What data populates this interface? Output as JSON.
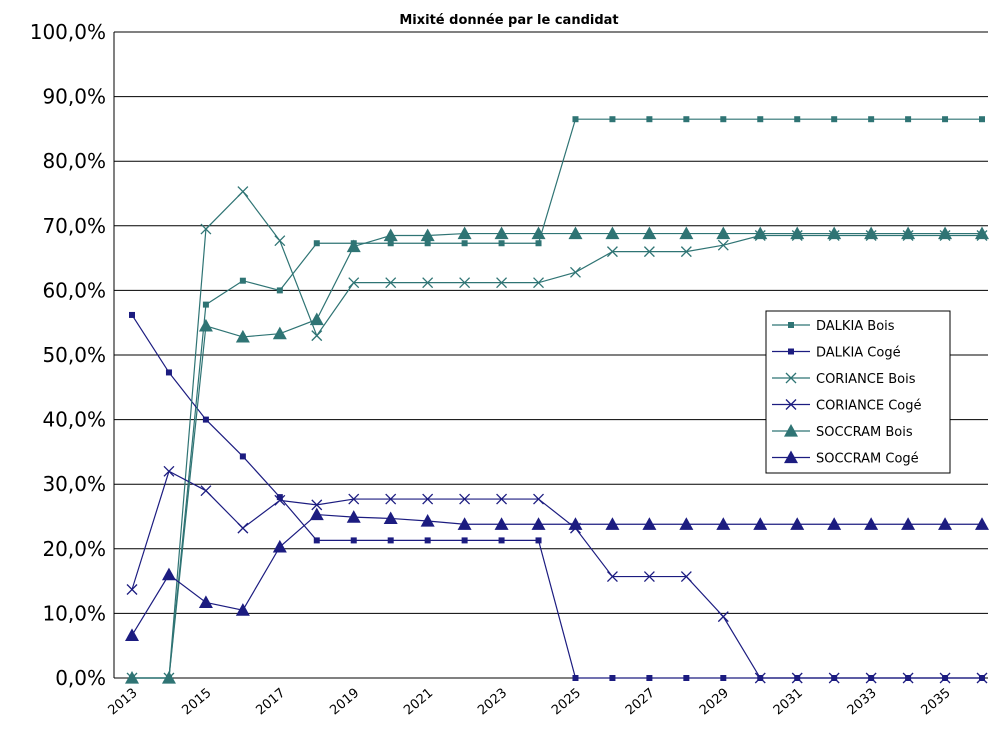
{
  "chart_data": {
    "type": "line",
    "title": "Mixité donnée par le candidat",
    "xlabel": "",
    "ylabel": "",
    "x": [
      2013,
      2014,
      2015,
      2016,
      2017,
      2018,
      2019,
      2020,
      2021,
      2022,
      2023,
      2024,
      2025,
      2026,
      2027,
      2028,
      2029,
      2030,
      2031,
      2032,
      2033,
      2034,
      2035,
      2036
    ],
    "x_tick_labels": [
      "2013",
      "2015",
      "2017",
      "2019",
      "2021",
      "2023",
      "2025",
      "2027",
      "2029",
      "2031",
      "2033",
      "2035"
    ],
    "ylim": [
      0,
      100
    ],
    "y_tick_labels": [
      "0,0%",
      "10,0%",
      "20,0%",
      "30,0%",
      "40,0%",
      "50,0%",
      "60,0%",
      "70,0%",
      "80,0%",
      "90,0%",
      "100,0%"
    ],
    "grid": "horizontal",
    "legend_position": "right",
    "series": [
      {
        "name": "DALKIA Bois",
        "color": "#2f7474",
        "marker": "square",
        "size": "small",
        "values": [
          0,
          0,
          57.8,
          61.5,
          60,
          67.3,
          67.3,
          67.3,
          67.3,
          67.3,
          67.3,
          67.3,
          86.5,
          86.5,
          86.5,
          86.5,
          86.5,
          86.5,
          86.5,
          86.5,
          86.5,
          86.5,
          86.5,
          86.5
        ]
      },
      {
        "name": "DALKIA Cogé",
        "color": "#1c1c80",
        "marker": "square",
        "size": "small",
        "values": [
          56.2,
          47.3,
          40,
          34.3,
          28,
          21.3,
          21.3,
          21.3,
          21.3,
          21.3,
          21.3,
          21.3,
          0,
          0,
          0,
          0,
          0,
          0,
          0,
          0,
          0,
          0,
          0,
          0
        ]
      },
      {
        "name": "CORIANCE Bois",
        "color": "#2f7474",
        "marker": "x",
        "size": "normal",
        "values": [
          0,
          0,
          69.5,
          75.3,
          67.7,
          53,
          61.2,
          61.2,
          61.2,
          61.2,
          61.2,
          61.2,
          62.8,
          66,
          66,
          66,
          67,
          68.5,
          68.5,
          68.5,
          68.5,
          68.5,
          68.5,
          68.5
        ]
      },
      {
        "name": "CORIANCE Cogé",
        "color": "#1c1c80",
        "marker": "x",
        "size": "normal",
        "values": [
          13.7,
          32,
          29,
          23.2,
          27.5,
          26.8,
          27.7,
          27.7,
          27.7,
          27.7,
          27.7,
          27.7,
          23.2,
          15.7,
          15.7,
          15.7,
          9.5,
          0,
          0,
          0,
          0,
          0,
          0,
          0
        ]
      },
      {
        "name": "SOCCRAM Bois",
        "color": "#2f7474",
        "marker": "triangle",
        "size": "large",
        "values": [
          0,
          0,
          54.5,
          52.8,
          53.3,
          55.5,
          66.8,
          68.5,
          68.5,
          68.8,
          68.8,
          68.8,
          68.8,
          68.8,
          68.8,
          68.8,
          68.8,
          68.8,
          68.8,
          68.8,
          68.8,
          68.8,
          68.8,
          68.8
        ]
      },
      {
        "name": "SOCCRAM Cogé",
        "color": "#1c1c80",
        "marker": "triangle",
        "size": "large",
        "values": [
          6.6,
          16,
          11.7,
          10.5,
          20.3,
          25.3,
          24.9,
          24.7,
          24.3,
          23.8,
          23.8,
          23.8,
          23.8,
          23.8,
          23.8,
          23.8,
          23.8,
          23.8,
          23.8,
          23.8,
          23.8,
          23.8,
          23.8,
          23.8
        ]
      }
    ]
  }
}
